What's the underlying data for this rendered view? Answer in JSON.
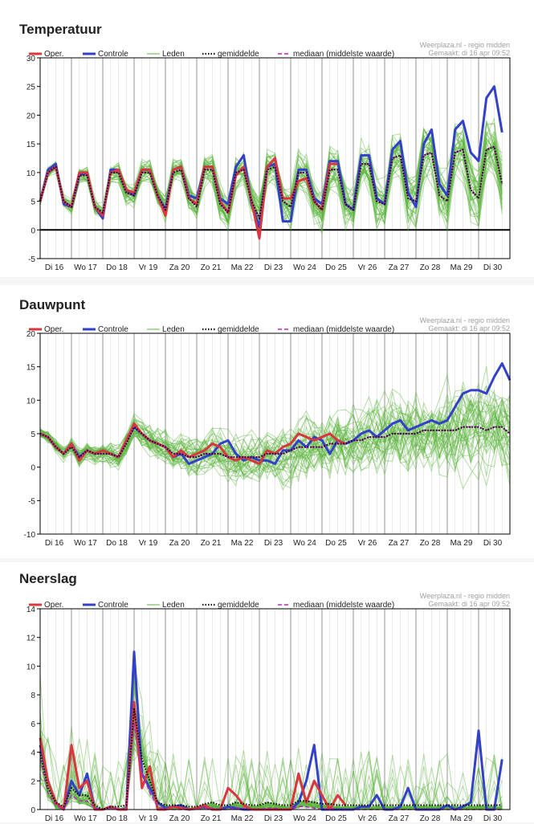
{
  "source": "Weerplaza.nl - regio midden",
  "made": "Gemaakt: di 16 apr 09:52",
  "legend": {
    "oper": "Oper.",
    "controle": "Controle",
    "leden": "Leden",
    "gemiddelde": "gemiddelde",
    "mediaan": "mediaan (middelste waarde)"
  },
  "colors": {
    "oper": "#d9363e",
    "controle": "#3340c8",
    "leden": "#59b33a",
    "gemiddelde": "#111111",
    "mediaan": "#c020c0"
  },
  "days": [
    "Di 16",
    "Wo 17",
    "Do 18",
    "Vr 19",
    "Za 20",
    "Zo 21",
    "Ma 22",
    "Di 23",
    "Wo 24",
    "Do 25",
    "Vr 26",
    "Za 27",
    "Zo 28",
    "Ma 29",
    "Di 30"
  ],
  "chart_data": [
    {
      "type": "line",
      "title": "Temperatuur",
      "ylim": [
        -5,
        30
      ],
      "yticks": [
        -5,
        0,
        5,
        10,
        15,
        20,
        25,
        30
      ],
      "x_unit": "6-hourly steps from Di 16 00:00",
      "series": [
        {
          "name": "Oper.",
          "values": [
            5,
            10,
            11,
            5,
            4,
            10,
            10,
            4,
            2.5,
            10,
            10.5,
            7,
            6.5,
            10.5,
            10.5,
            6,
            2.5,
            10.5,
            11,
            5.5,
            4.5,
            11,
            11,
            5,
            3,
            9.5,
            11,
            5,
            -1.5,
            11,
            12.5,
            5.5,
            5.5,
            8.5,
            9,
            5,
            3.5,
            11.5,
            11.5
          ]
        },
        {
          "name": "Controle",
          "values": [
            5,
            10.5,
            11.5,
            4.5,
            4,
            9.5,
            10,
            4,
            2,
            10.5,
            10.5,
            7,
            6,
            10.5,
            10.5,
            6,
            3.5,
            10.5,
            11,
            6,
            5.5,
            11,
            11,
            5.5,
            4.5,
            11,
            13,
            4.5,
            0.5,
            11,
            11.5,
            1.5,
            1.5,
            10.5,
            10.5,
            5.5,
            4.5,
            12,
            12,
            4.5,
            3.5,
            13,
            13,
            5.5,
            4.5,
            14,
            15.5,
            6.5,
            4,
            15,
            17.5,
            8,
            6,
            17.5,
            19,
            13.5,
            12,
            23,
            25,
            17
          ]
        },
        {
          "name": "gemiddelde",
          "values": [
            5,
            10,
            11,
            5,
            4,
            9.5,
            9.5,
            4,
            3,
            10,
            10,
            6.5,
            6,
            10,
            10,
            6,
            3.5,
            10,
            10.5,
            5.5,
            4,
            10.5,
            10.5,
            4.5,
            3,
            10,
            10.5,
            5,
            2,
            10.5,
            11,
            5,
            4,
            10,
            10,
            5,
            3.5,
            10.5,
            10.5,
            4.5,
            3.5,
            11.5,
            11.5,
            5,
            4.5,
            12.5,
            13,
            5.5,
            5,
            13,
            13.5,
            6,
            5,
            13.5,
            14,
            7,
            5.5,
            14,
            14.5,
            8
          ]
        },
        {
          "name": "mediaan (middelste waarde)",
          "values": [
            5,
            10,
            11,
            5,
            4,
            9.5,
            9.5,
            4,
            3,
            10,
            10,
            6.5,
            6,
            10,
            10,
            6,
            3.5,
            10,
            10.5,
            5.5,
            4,
            10.5,
            10.5,
            4.5,
            3,
            10,
            10.5,
            5,
            2,
            10.5,
            11,
            5,
            4,
            10,
            10,
            5,
            3.5,
            10.5,
            10.5,
            4.5,
            3.5,
            11.5,
            11.5,
            5,
            4.5,
            12.5,
            13,
            5.5,
            5,
            13,
            13.5,
            6,
            5,
            13.5,
            14,
            7,
            5.5,
            14,
            14.5,
            8
          ]
        }
      ]
    },
    {
      "type": "line",
      "title": "Dauwpunt",
      "ylim": [
        -10,
        20
      ],
      "yticks": [
        -10,
        -5,
        0,
        5,
        10,
        15,
        20
      ],
      "x_unit": "6-hourly steps from Di 16 00:00",
      "series": [
        {
          "name": "Oper.",
          "values": [
            5,
            4.5,
            3,
            2,
            3.5,
            1,
            2.5,
            2,
            2.5,
            2,
            1.5,
            4,
            6.5,
            5,
            4,
            3.5,
            3,
            1.5,
            2.5,
            1.5,
            2,
            2.5,
            3.5,
            3,
            1.5,
            1,
            1.5,
            1,
            0.5,
            2.5,
            2,
            3,
            3.5,
            5,
            4.5,
            4,
            4.5,
            5,
            4,
            3.5
          ]
        },
        {
          "name": "Controle",
          "values": [
            5,
            4.5,
            3,
            2,
            3.5,
            1.5,
            2.5,
            2,
            2.5,
            2,
            1.5,
            4,
            6,
            5,
            4,
            3.5,
            3,
            1.5,
            2,
            0.5,
            1,
            1.5,
            2,
            3.5,
            4,
            2,
            1,
            1.5,
            1,
            1,
            0.5,
            2.5,
            2.5,
            4,
            3,
            4.5,
            4,
            2,
            4,
            3.5,
            4,
            5,
            5.5,
            4.5,
            5.5,
            6.5,
            7,
            5.5,
            6,
            6.5,
            7,
            6.5,
            7,
            9,
            11,
            11.5,
            11.5,
            11,
            13.5,
            15.5,
            13
          ]
        },
        {
          "name": "gemiddelde",
          "values": [
            5,
            4.5,
            3,
            2,
            3,
            1.5,
            2.5,
            2,
            2,
            2,
            1.5,
            3.5,
            6,
            5,
            4,
            3.5,
            3,
            2,
            2,
            1.5,
            1.5,
            2,
            2,
            2,
            1.5,
            1.5,
            1.5,
            1.5,
            1.5,
            2,
            2,
            2,
            2.5,
            3,
            3,
            3,
            3,
            3.5,
            3.5,
            3.5,
            4,
            4,
            4.5,
            4.5,
            4.5,
            5,
            5,
            5,
            5,
            5.5,
            5.5,
            5.5,
            5.5,
            5.5,
            6,
            6,
            6,
            5.5,
            6,
            6,
            5
          ]
        },
        {
          "name": "mediaan (middelste waarde)",
          "values": [
            5,
            4.5,
            3,
            2,
            3,
            1.5,
            2.5,
            2,
            2,
            2,
            1.5,
            3.5,
            6,
            5,
            4,
            3.5,
            3,
            2,
            2,
            1.5,
            1.5,
            2,
            2,
            2,
            1.5,
            1.5,
            1.5,
            1.5,
            1.5,
            2,
            2,
            2,
            2.5,
            3,
            3,
            3,
            3,
            3.5,
            3.5,
            3.5,
            4,
            4,
            4.5,
            4.5,
            4.5,
            5,
            5,
            5,
            5,
            5.5,
            5.5,
            5.5,
            5.5,
            5.5,
            6,
            6,
            6,
            5.5,
            6,
            6,
            5
          ]
        }
      ]
    },
    {
      "type": "line",
      "title": "Neerslag",
      "ylim": [
        0,
        14
      ],
      "yticks": [
        0,
        2,
        4,
        6,
        8,
        10,
        12,
        14
      ],
      "x_unit": "6-hourly steps from Di 16 00:00",
      "series": [
        {
          "name": "Oper.",
          "values": [
            5,
            2,
            0.5,
            0,
            4.5,
            1.5,
            2,
            0,
            0,
            0.2,
            0,
            0,
            7.5,
            1.5,
            3,
            0,
            0,
            0.2,
            0.1,
            0,
            0.1,
            0.3,
            0,
            0,
            1.5,
            1,
            0.3,
            0,
            0,
            0,
            0,
            0,
            0,
            2.5,
            0.5,
            2,
            1,
            0,
            1,
            0.3
          ]
        },
        {
          "name": "Controle",
          "values": [
            4.5,
            2,
            0.5,
            0,
            2,
            1,
            2.5,
            0,
            0,
            0.2,
            0,
            0,
            11,
            2.5,
            1.5,
            0.5,
            0.1,
            0.2,
            0.3,
            0,
            0.1,
            0.2,
            0,
            0,
            0.2,
            0.1,
            0,
            0,
            0,
            0,
            0,
            0,
            0,
            0.5,
            2,
            4.5,
            0,
            0,
            0,
            0,
            0,
            0.2,
            0.2,
            1,
            0,
            0,
            0.2,
            1.5,
            0,
            0,
            0,
            0,
            0.3,
            0,
            0.2,
            0.5,
            5.5,
            0,
            0,
            3.5
          ]
        },
        {
          "name": "gemiddelde",
          "values": [
            4,
            1.5,
            0.5,
            0.2,
            1.5,
            1,
            1,
            0.3,
            0,
            0.2,
            0.2,
            0.3,
            7,
            3.5,
            2,
            0.5,
            0.3,
            0.3,
            0.3,
            0.2,
            0.2,
            0.4,
            0.5,
            0.3,
            0.3,
            0.5,
            0.4,
            0.3,
            0.3,
            0.5,
            0.4,
            0.3,
            0.3,
            0.6,
            0.6,
            0.5,
            0.4,
            0.4,
            0.3,
            0.3,
            0.3,
            0.3,
            0.3,
            0.3,
            0.3,
            0.3,
            0.3,
            0.3,
            0.3,
            0.3,
            0.3,
            0.3,
            0.3,
            0.3,
            0.3,
            0.3,
            0.3,
            0.3,
            0.3,
            0.3
          ]
        },
        {
          "name": "mediaan (middelste waarde)",
          "values": [
            3.5,
            1.2,
            0.3,
            0,
            1,
            0.6,
            0.6,
            0.1,
            0,
            0.1,
            0,
            0.1,
            6,
            2.5,
            1.2,
            0.2,
            0,
            0,
            0,
            0,
            0,
            0.1,
            0.1,
            0,
            0,
            0.1,
            0.1,
            0,
            0,
            0.1,
            0.1,
            0,
            0,
            0.2,
            0.2,
            0.1,
            0,
            0.1,
            0,
            0,
            0,
            0,
            0,
            0,
            0,
            0,
            0,
            0,
            0,
            0,
            0,
            0,
            0,
            0,
            0,
            0,
            0,
            0,
            0,
            0
          ]
        }
      ]
    }
  ]
}
